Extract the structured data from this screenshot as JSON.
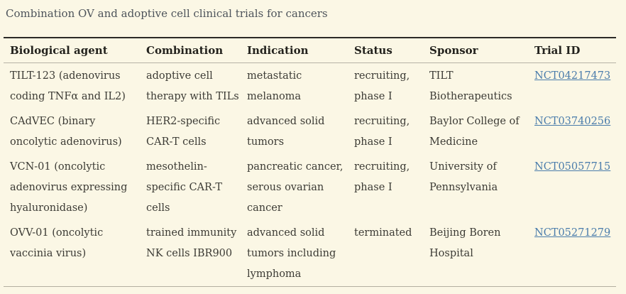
{
  "page": {
    "title": "Combination OV and adoptive cell clinical trials for cancers"
  },
  "colors": {
    "background": "#fbf7e5",
    "title_text": "#4e545b",
    "header_text": "#23221d",
    "body_text": "#3c3b35",
    "link": "#4a7cab",
    "rule_dark": "#2b2a27",
    "rule_light": "#b7b3a6"
  },
  "table": {
    "headers": [
      "Biological agent",
      "Combination",
      "Indication",
      "Status",
      "Sponsor",
      "Trial ID"
    ],
    "rows": [
      {
        "biological_agent": "TILT-123 (adenovirus coding TNFα and IL2)",
        "combination": "adoptive cell therapy with TILs",
        "indication": "metastatic melanoma",
        "status": "recruiting, phase I",
        "sponsor": "TILT Biotherapeutics",
        "trial_id": "NCT04217473"
      },
      {
        "biological_agent": "CAdVEC (binary oncolytic adenovirus)",
        "combination": "HER2-specific CAR-T cells",
        "indication": "advanced solid tumors",
        "status": "recruiting, phase I",
        "sponsor": "Baylor College of Medicine",
        "trial_id": "NCT03740256"
      },
      {
        "biological_agent": "VCN-01 (oncolytic adenovirus expressing hyaluronidase)",
        "combination": "mesothelin-specific CAR-T cells",
        "indication": "pancreatic cancer, serous ovarian cancer",
        "status": "recruiting, phase I",
        "sponsor": "University of Pennsylvania",
        "trial_id": "NCT05057715"
      },
      {
        "biological_agent": "OVV-01 (oncolytic vaccinia virus)",
        "combination": "trained immunity NK cells IBR900",
        "indication": "advanced solid tumors including lymphoma",
        "status": "terminated",
        "sponsor": "Beijing Boren Hospital",
        "trial_id": "NCT05271279"
      }
    ]
  }
}
